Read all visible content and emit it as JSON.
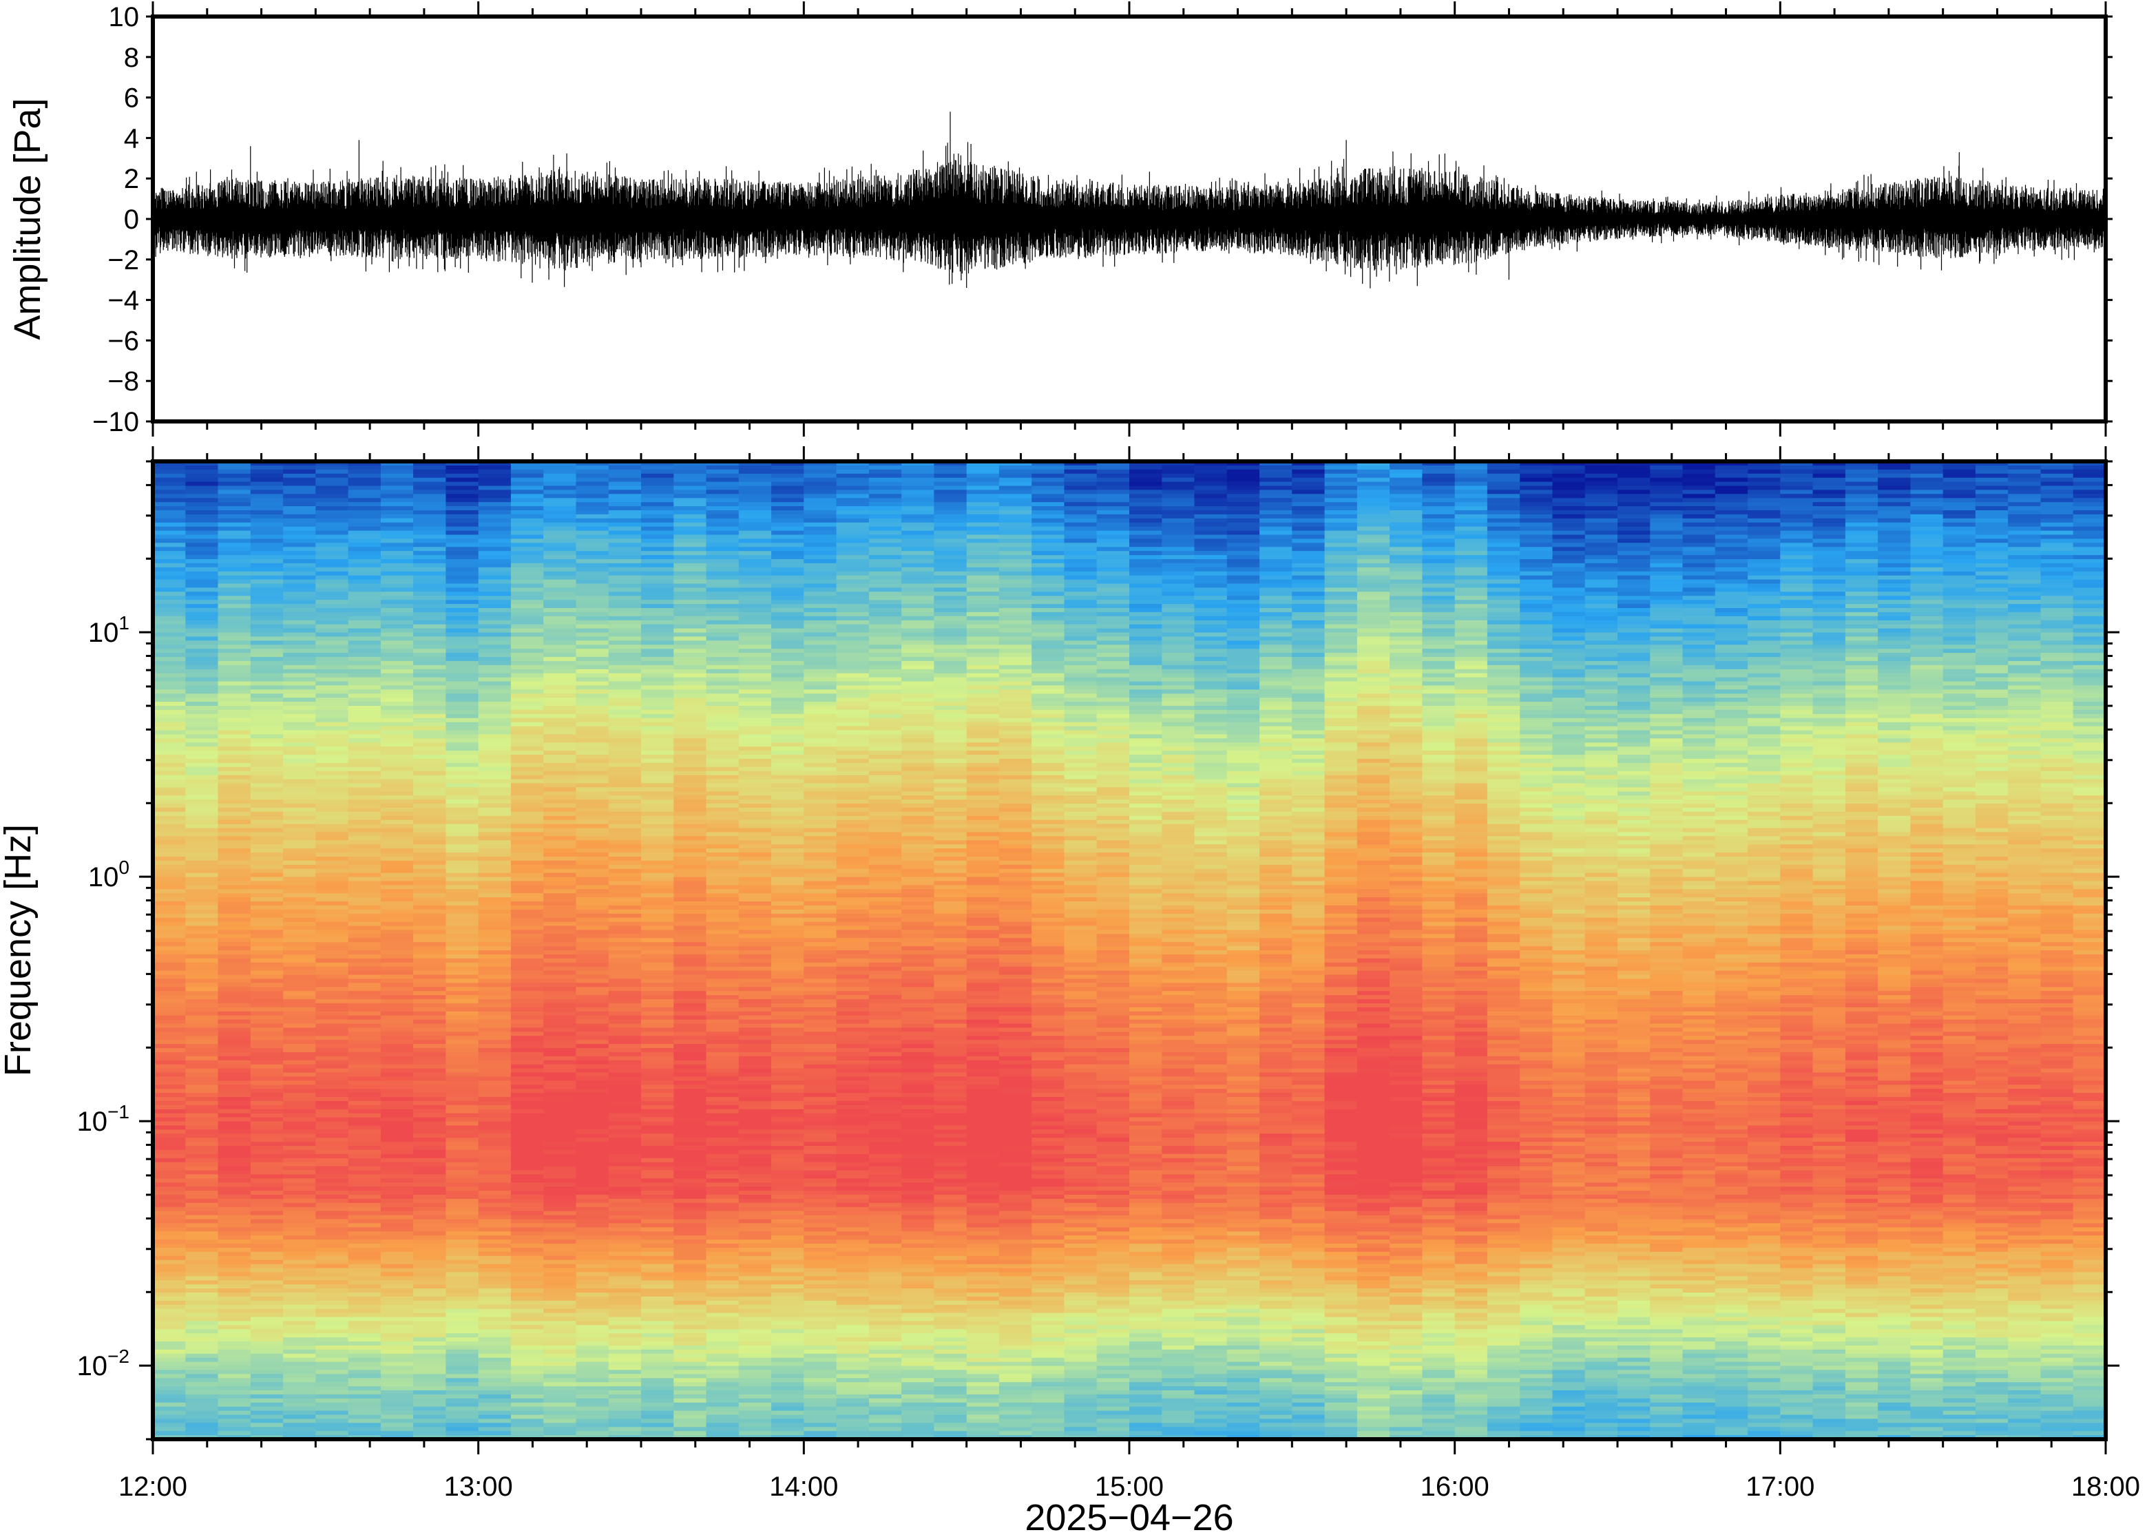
{
  "chart_data": [
    {
      "type": "line",
      "panel": "waveform",
      "title": "",
      "xlabel": "",
      "ylabel": "Amplitude [Pa]",
      "xlim": [
        "12:00",
        "18:00"
      ],
      "ylim": [
        -10,
        10
      ],
      "yticks": [
        10,
        8,
        6,
        4,
        2,
        0,
        -2,
        -4,
        -6,
        -8,
        -10
      ],
      "ytick_labels": [
        "10",
        "8",
        "6",
        "4",
        "2",
        "0",
        "−2",
        "−4",
        "−6",
        "−8",
        "−10"
      ],
      "grid": false,
      "series": [
        {
          "color": "#000000",
          "x": [
            "12:00",
            "12:15",
            "12:30",
            "12:45",
            "13:00",
            "13:15",
            "13:30",
            "13:45",
            "14:00",
            "14:15",
            "14:30",
            "14:45",
            "15:00",
            "15:15",
            "15:30",
            "15:45",
            "16:00",
            "16:15",
            "16:30",
            "16:45",
            "17:00",
            "17:15",
            "17:30",
            "17:45",
            "18:00"
          ],
          "envelope_max": [
            1.5,
            2.0,
            1.8,
            2.2,
            2.0,
            2.5,
            2.0,
            2.0,
            1.8,
            2.2,
            3.0,
            2.0,
            1.8,
            1.6,
            1.8,
            2.6,
            2.4,
            1.4,
            1.0,
            0.8,
            1.2,
            1.6,
            2.2,
            1.6,
            1.5
          ],
          "envelope_min": [
            -1.5,
            -2.0,
            -1.8,
            -2.0,
            -2.0,
            -2.6,
            -2.0,
            -2.0,
            -1.8,
            -2.0,
            -2.8,
            -2.0,
            -1.8,
            -1.6,
            -1.8,
            -2.6,
            -2.4,
            -1.4,
            -1.0,
            -0.8,
            -1.2,
            -1.6,
            -2.0,
            -1.6,
            -1.5
          ],
          "peaks": [
            {
              "x": "12:18",
              "y": 3.6
            },
            {
              "x": "12:38",
              "y": 3.9
            },
            {
              "x": "13:13",
              "y": -3.0
            },
            {
              "x": "14:27",
              "y": 5.3
            },
            {
              "x": "14:30",
              "y": -3.4
            },
            {
              "x": "15:40",
              "y": 3.9
            },
            {
              "x": "15:43",
              "y": -3.2
            },
            {
              "x": "16:10",
              "y": -3.0
            },
            {
              "x": "17:33",
              "y": 3.3
            }
          ]
        }
      ]
    },
    {
      "type": "heatmap",
      "panel": "spectrogram",
      "title": "",
      "xlabel": "2025−04−26",
      "ylabel": "Frequency [Hz]",
      "xlim": [
        "12:00",
        "18:00"
      ],
      "xticks": [
        "12:00",
        "13:00",
        "14:00",
        "15:00",
        "16:00",
        "17:00",
        "18:00"
      ],
      "ylim": [
        0.005,
        50
      ],
      "yscale": "log",
      "yticks": [
        {
          "value": 10,
          "base": "10",
          "exp": "1"
        },
        {
          "value": 1,
          "base": "10",
          "exp": "0"
        },
        {
          "value": 0.1,
          "base": "10",
          "exp": "−1"
        },
        {
          "value": 0.01,
          "base": "10",
          "exp": "−2"
        }
      ],
      "colormap": "rainbow (blue low power, red high power)",
      "colors": {
        "low": "#0a1a9e",
        "mid_low": "#2aa5f0",
        "mid": "#d6f28a",
        "mid_high": "#f9a04a",
        "high": "#ef4b4e"
      },
      "time_bins": 60,
      "band_power_levels": [
        {
          "frequency": 40,
          "level": 0.08
        },
        {
          "frequency": 25,
          "level": 0.18
        },
        {
          "frequency": 10,
          "level": 0.32
        },
        {
          "frequency": 4,
          "level": 0.48
        },
        {
          "frequency": 1,
          "level": 0.68
        },
        {
          "frequency": 0.3,
          "level": 0.84
        },
        {
          "frequency": 0.1,
          "level": 0.95
        },
        {
          "frequency": 0.05,
          "level": 0.92
        },
        {
          "frequency": 0.03,
          "level": 0.75
        },
        {
          "frequency": 0.015,
          "level": 0.52
        },
        {
          "frequency": 0.008,
          "level": 0.36
        },
        {
          "frequency": 0.005,
          "level": 0.3
        }
      ],
      "time_variation": [
        {
          "x": "12:00",
          "offset": 0.02
        },
        {
          "x": "13:00",
          "offset": 0.0
        },
        {
          "x": "13:20",
          "offset": 0.08
        },
        {
          "x": "14:00",
          "offset": 0.02
        },
        {
          "x": "14:30",
          "offset": 0.1
        },
        {
          "x": "15:00",
          "offset": 0.0
        },
        {
          "x": "15:30",
          "offset": -0.04
        },
        {
          "x": "15:40",
          "offset": 0.1
        },
        {
          "x": "16:00",
          "offset": 0.05
        },
        {
          "x": "16:30",
          "offset": -0.08
        },
        {
          "x": "17:00",
          "offset": 0.0
        },
        {
          "x": "18:00",
          "offset": 0.02
        }
      ]
    }
  ]
}
